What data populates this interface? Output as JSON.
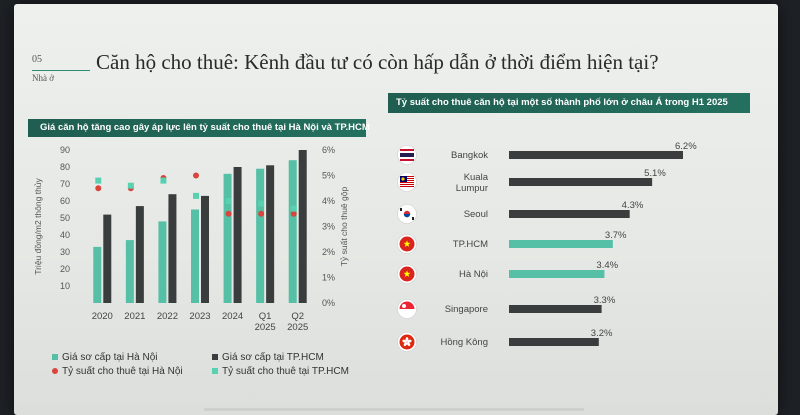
{
  "header": {
    "section_number": "05",
    "section_name": "Nhà ở",
    "title": "Căn hộ cho thuê: Kênh đầu tư có còn hấp dẫn ở thời điểm hiện tại?"
  },
  "colors": {
    "teal_accent": "#2f8a74",
    "header_bar": "#24705f",
    "bar_dark": "#3a3d3d",
    "bar_teal": "#55c0a6",
    "dot_red": "#d9443b",
    "dot_teal": "#58d1b1"
  },
  "chart_data": [
    {
      "type": "bar",
      "title": "Giá căn hộ tăng cao gây áp lực lên tỷ suất cho thuê tại Hà Nội và TP.HCM",
      "categories": [
        "2020",
        "2021",
        "2022",
        "2023",
        "2024",
        "Q1\n2025",
        "Q2\n2025"
      ],
      "category_lines": [
        [
          "2020"
        ],
        [
          "2021"
        ],
        [
          "2022"
        ],
        [
          "2023"
        ],
        [
          "2024"
        ],
        [
          "Q1",
          "2025"
        ],
        [
          "Q2",
          "2025"
        ]
      ],
      "ylabel": "Triệu đồng/m2 thông thủy",
      "y2label": "Tỷ suất cho thuê gộp",
      "ylim": [
        0,
        90
      ],
      "yticks": [
        "10",
        "20",
        "30",
        "40",
        "50",
        "60",
        "70",
        "80",
        "90"
      ],
      "y2lim": [
        0,
        6
      ],
      "y2ticks": [
        "0%",
        "1%",
        "2%",
        "3%",
        "4%",
        "5%",
        "6%"
      ],
      "series": [
        {
          "name": "Giá sơ cấp tại Hà Nội",
          "kind": "bar",
          "axis": "left",
          "values": [
            33,
            37,
            48,
            55,
            76,
            79,
            84
          ]
        },
        {
          "name": "Giá sơ cấp tại TP.HCM",
          "kind": "bar",
          "axis": "left",
          "values": [
            52,
            57,
            64,
            63,
            80,
            81,
            90
          ]
        },
        {
          "name": "Tỷ suất cho thuê tại Hà Nội",
          "kind": "dot",
          "axis": "right",
          "values": [
            4.5,
            4.5,
            4.9,
            5.0,
            3.5,
            3.5,
            3.5
          ]
        },
        {
          "name": "Tỷ suất cho thuê tại TP.HCM",
          "kind": "square",
          "axis": "right",
          "values": [
            4.8,
            4.6,
            4.8,
            4.2,
            4.0,
            3.9,
            3.7
          ]
        }
      ],
      "legend": [
        {
          "label": "Giá sơ cấp tại Hà Nội"
        },
        {
          "label": "Giá sơ cấp tại TP.HCM"
        },
        {
          "label": "Tỷ suất cho thuê tại Hà Nội"
        },
        {
          "label": "Tỷ suất cho thuê tại TP.HCM"
        }
      ]
    },
    {
      "type": "bar",
      "orientation": "horizontal",
      "title": "Tỷ suất cho thuê căn hộ tại một số thành phố lớn ở châu Á trong H1 2025",
      "xlim": [
        0,
        6.5
      ],
      "items": [
        {
          "city_lines": [
            "Bangkok"
          ],
          "value": 6.2,
          "label": "6.2%",
          "highlight": false,
          "flag": "thailand-flag"
        },
        {
          "city_lines": [
            "Kuala",
            "Lumpur"
          ],
          "value": 5.1,
          "label": "5.1%",
          "highlight": false,
          "flag": "malaysia-flag"
        },
        {
          "city_lines": [
            "Seoul"
          ],
          "value": 4.3,
          "label": "4.3%",
          "highlight": false,
          "flag": "korea-flag"
        },
        {
          "city_lines": [
            "TP.HCM"
          ],
          "value": 3.7,
          "label": "3.7%",
          "highlight": true,
          "flag": "vietnam-flag"
        },
        {
          "city_lines": [
            "Hà Nội"
          ],
          "value": 3.4,
          "label": "3.4%",
          "highlight": true,
          "flag": "vietnam-flag"
        },
        {
          "city_lines": [
            "Singapore"
          ],
          "value": 3.3,
          "label": "3.3%",
          "highlight": false,
          "flag": "singapore-flag"
        },
        {
          "city_lines": [
            "Hồng Kông"
          ],
          "value": 3.2,
          "label": "3.2%",
          "highlight": false,
          "flag": "hongkong-flag"
        }
      ]
    }
  ]
}
